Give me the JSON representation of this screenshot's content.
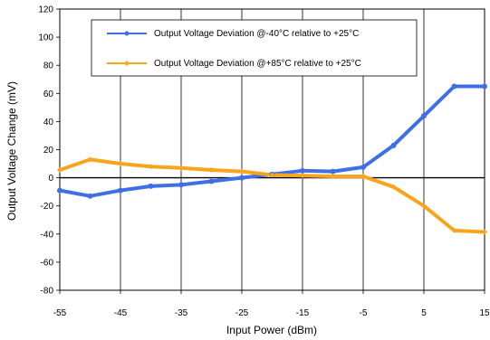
{
  "chart_data": {
    "type": "line",
    "title": "",
    "xlabel": "Input Power (dBm)",
    "ylabel": "Output Voltage Change (mV)",
    "xlim": [
      -55,
      15
    ],
    "ylim": [
      -80,
      120
    ],
    "xticks": [
      -55,
      -45,
      -35,
      -25,
      -15,
      -5,
      5,
      15
    ],
    "yticks": [
      -80,
      -60,
      -40,
      -20,
      0,
      20,
      40,
      60,
      80,
      100,
      120
    ],
    "grid": {
      "vertical": true,
      "horizontal": false,
      "zero_line": true
    },
    "legend_position": "top-center",
    "series": [
      {
        "name": "Output Voltage Deviation @-40°C relative to +25°C",
        "color": "#3f6fe6",
        "marker": "circle",
        "x": [
          -55,
          -50,
          -45,
          -40,
          -35,
          -30,
          -25,
          -20,
          -15,
          -10,
          -5,
          0,
          5,
          10,
          15
        ],
        "y": [
          -9,
          -13,
          -9,
          -6,
          -5,
          -2.5,
          0,
          2.5,
          5,
          4.5,
          7.5,
          23,
          44,
          65,
          65
        ]
      },
      {
        "name": "Output Voltage Deviation @+85°C relative to +25°C",
        "color": "#f7a51c",
        "marker": "diamond",
        "x": [
          -55,
          -50,
          -45,
          -40,
          -35,
          -30,
          -25,
          -20,
          -15,
          -10,
          -5,
          0,
          5,
          10,
          15
        ],
        "y": [
          5.5,
          13,
          10,
          8,
          7,
          5.5,
          4.5,
          2,
          1.5,
          1,
          1,
          -6.5,
          -20,
          -37.5,
          -38.5
        ]
      }
    ]
  }
}
